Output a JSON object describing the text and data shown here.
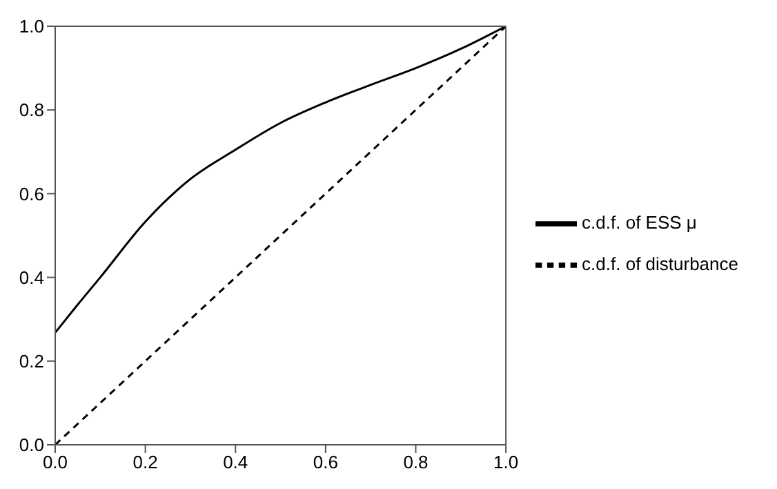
{
  "chart_data": {
    "type": "line",
    "xlim": [
      0,
      1
    ],
    "ylim": [
      0,
      1
    ],
    "xticks": [
      {
        "value": 0,
        "label": "0.0"
      },
      0.2,
      0.4,
      0.6,
      0.8,
      {
        "value": 1,
        "label": "1.0"
      }
    ],
    "yticks": [
      {
        "value": 0,
        "label": "0.0"
      },
      0.2,
      0.4,
      0.6,
      0.8,
      {
        "value": 1,
        "label": "1.0"
      }
    ],
    "grid": false,
    "legend": "right",
    "marker": "none",
    "series": [
      {
        "name": "c.d.f. of ESS μ",
        "color": "#000000",
        "line_style": "solid",
        "x": [
          0,
          0.05,
          0.1,
          0.2,
          0.3,
          0.4,
          0.5,
          0.6,
          0.7,
          0.8,
          0.9,
          1
        ],
        "values": [
          0.268,
          0.335,
          0.4,
          0.533,
          0.635,
          0.705,
          0.769,
          0.818,
          0.86,
          0.9,
          0.946,
          1
        ]
      },
      {
        "name": "c.d.f. of disturbance",
        "color": "#000000",
        "line_style": "dashed",
        "x": [
          0,
          1
        ],
        "values": [
          0,
          1
        ]
      }
    ]
  }
}
